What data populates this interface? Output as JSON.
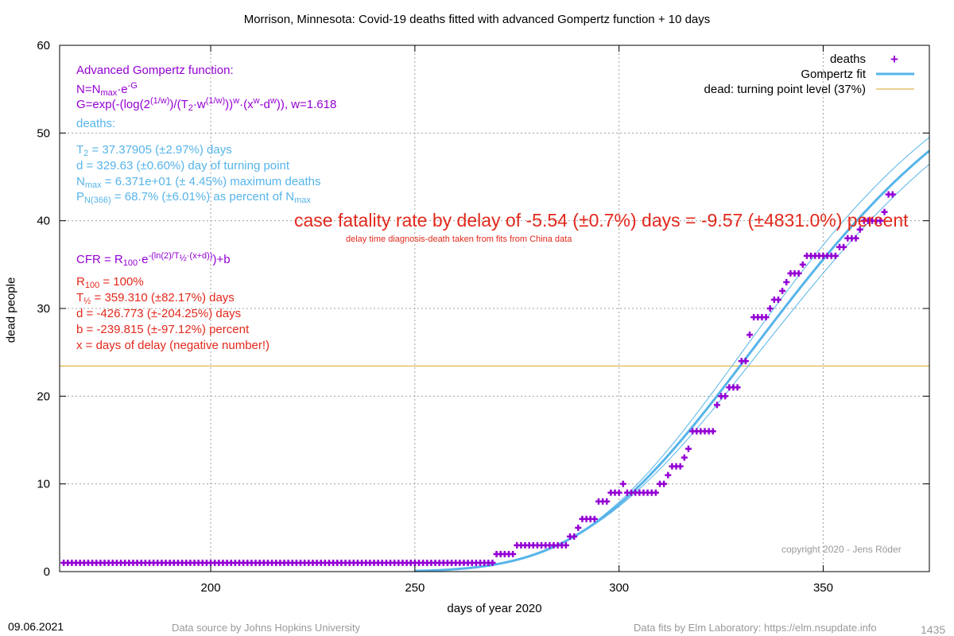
{
  "title": "Morrison,  Minnesota: Covid-19 deaths fitted with advanced Gompertz function + 10 days",
  "footer": {
    "date": "09.06.2021",
    "source": "Data source by Johns Hopkins University",
    "fits": "Data fits by Elm Laboratory: https://elm.nsupdate.info",
    "id": "1435",
    "copyright": "copyright 2020 - Jens Röder"
  },
  "annotations": {
    "gompertz_heading": "Advanced Gompertz function:",
    "gompertz_n": "N=N",
    "gompertz_n_sub": "max",
    "gompertz_n_rest": "·e",
    "gompertz_n_sup": "-G",
    "gompertz_g": " G=exp(-(log(2",
    "gompertz_g_sup1": "(1/w)",
    "gompertz_g_mid": ")/(T",
    "gompertz_g_sub": "2",
    "gompertz_g_mid2": "·w",
    "gompertz_g_sup2": "(1/w)",
    "gompertz_g_mid3": "))",
    "gompertz_g_sup3": "w",
    "gompertz_g_mid4": "·(x",
    "gompertz_g_sup4": "w",
    "gompertz_g_mid5": "-d",
    "gompertz_g_sup5": "w",
    "gompertz_g_end": ")), w=1.618",
    "deaths_heading": "deaths:",
    "t2_label": "T",
    "t2_sub": "2",
    "t2_value": " = 37.37905 (±2.97%) days",
    "d_line": "d = 329.63 (±0.60%) day of turning point",
    "nmax_label": "N",
    "nmax_sub": "max",
    "nmax_value": " = 6.371e+01 (± 4.45%) maximum deaths",
    "p_label": "P",
    "p_sub": "N(366)",
    "p_value": " = 68.7% (±6.01%) as percent of N",
    "p_sub2": "max",
    "cfr_label": "CFR = R",
    "cfr_sub": "100",
    "cfr_mid": "·e",
    "cfr_sup": "-(ln(2)/T",
    "cfr_sup_sub": "½",
    "cfr_sup_end": "·(x+d))",
    "cfr_end": ")+b",
    "r100_label": "R",
    "r100_sub": "100",
    "r100_value": " = 100%",
    "thalf_label": "T",
    "thalf_sub": "½",
    "thalf_value": " = 359.310 (±82.17%) days",
    "d2_line": "d = -426.773 (±-204.25%) days",
    "b_line": "b = -239.815 (±-97.12%) percent",
    "x_line": "x = days of delay (negative number!)",
    "cfr_big": "case fatality rate by delay of -5.54 (±0.7%) days = -9.57 (±4831.0%) percent",
    "cfr_small": "delay time diagnosis-death taken from fits from China data"
  },
  "colors": {
    "deaths": "#9400d3",
    "fit": "#56b4e9",
    "turning": "#daa520",
    "red": "#e2291c",
    "grid": "#a0a0a0"
  },
  "chart_data": {
    "type": "scatter",
    "title": "Morrison,  Minnesota: Covid-19 deaths fitted with advanced Gompertz function + 10 days",
    "xlabel": "days of year 2020",
    "ylabel": "dead people",
    "xlim": [
      163,
      376
    ],
    "ylim": [
      0,
      60
    ],
    "xticks": [
      200,
      250,
      300,
      350
    ],
    "yticks": [
      0,
      10,
      20,
      30,
      40,
      50,
      60
    ],
    "grid": true,
    "legend_position": "top-right",
    "legend": [
      "deaths",
      "Gompertz fit",
      "dead: turning point level (37%)"
    ],
    "turning_point_level": 23.44,
    "gompertz": {
      "T2": 37.37905,
      "d": 329.63,
      "Nmax": 63.71,
      "w": 1.618,
      "x_start": 250,
      "T2_lo": 36.27,
      "T2_hi": 38.49,
      "d_lo": 327.65,
      "d_hi": 331.61
    },
    "series": [
      {
        "name": "deaths",
        "points": [
          [
            164,
            1
          ],
          [
            165,
            1
          ],
          [
            166,
            1
          ],
          [
            167,
            1
          ],
          [
            168,
            1
          ],
          [
            169,
            1
          ],
          [
            170,
            1
          ],
          [
            171,
            1
          ],
          [
            172,
            1
          ],
          [
            173,
            1
          ],
          [
            174,
            1
          ],
          [
            175,
            1
          ],
          [
            176,
            1
          ],
          [
            177,
            1
          ],
          [
            178,
            1
          ],
          [
            179,
            1
          ],
          [
            180,
            1
          ],
          [
            181,
            1
          ],
          [
            182,
            1
          ],
          [
            183,
            1
          ],
          [
            184,
            1
          ],
          [
            185,
            1
          ],
          [
            186,
            1
          ],
          [
            187,
            1
          ],
          [
            188,
            1
          ],
          [
            189,
            1
          ],
          [
            190,
            1
          ],
          [
            191,
            1
          ],
          [
            192,
            1
          ],
          [
            193,
            1
          ],
          [
            194,
            1
          ],
          [
            195,
            1
          ],
          [
            196,
            1
          ],
          [
            197,
            1
          ],
          [
            198,
            1
          ],
          [
            199,
            1
          ],
          [
            200,
            1
          ],
          [
            201,
            1
          ],
          [
            202,
            1
          ],
          [
            203,
            1
          ],
          [
            204,
            1
          ],
          [
            205,
            1
          ],
          [
            206,
            1
          ],
          [
            207,
            1
          ],
          [
            208,
            1
          ],
          [
            209,
            1
          ],
          [
            210,
            1
          ],
          [
            211,
            1
          ],
          [
            212,
            1
          ],
          [
            213,
            1
          ],
          [
            214,
            1
          ],
          [
            215,
            1
          ],
          [
            216,
            1
          ],
          [
            217,
            1
          ],
          [
            218,
            1
          ],
          [
            219,
            1
          ],
          [
            220,
            1
          ],
          [
            221,
            1
          ],
          [
            222,
            1
          ],
          [
            223,
            1
          ],
          [
            224,
            1
          ],
          [
            225,
            1
          ],
          [
            226,
            1
          ],
          [
            227,
            1
          ],
          [
            228,
            1
          ],
          [
            229,
            1
          ],
          [
            230,
            1
          ],
          [
            231,
            1
          ],
          [
            232,
            1
          ],
          [
            233,
            1
          ],
          [
            234,
            1
          ],
          [
            235,
            1
          ],
          [
            236,
            1
          ],
          [
            237,
            1
          ],
          [
            238,
            1
          ],
          [
            239,
            1
          ],
          [
            240,
            1
          ],
          [
            241,
            1
          ],
          [
            242,
            1
          ],
          [
            243,
            1
          ],
          [
            244,
            1
          ],
          [
            245,
            1
          ],
          [
            246,
            1
          ],
          [
            247,
            1
          ],
          [
            248,
            1
          ],
          [
            249,
            1
          ],
          [
            250,
            1
          ],
          [
            251,
            1
          ],
          [
            252,
            1
          ],
          [
            253,
            1
          ],
          [
            254,
            1
          ],
          [
            255,
            1
          ],
          [
            256,
            1
          ],
          [
            257,
            1
          ],
          [
            258,
            1
          ],
          [
            259,
            1
          ],
          [
            260,
            1
          ],
          [
            261,
            1
          ],
          [
            262,
            1
          ],
          [
            263,
            1
          ],
          [
            264,
            1
          ],
          [
            265,
            1
          ],
          [
            266,
            1
          ],
          [
            267,
            1
          ],
          [
            268,
            1
          ],
          [
            269,
            1
          ],
          [
            270,
            2
          ],
          [
            271,
            2
          ],
          [
            272,
            2
          ],
          [
            273,
            2
          ],
          [
            274,
            2
          ],
          [
            275,
            3
          ],
          [
            276,
            3
          ],
          [
            277,
            3
          ],
          [
            278,
            3
          ],
          [
            279,
            3
          ],
          [
            280,
            3
          ],
          [
            281,
            3
          ],
          [
            282,
            3
          ],
          [
            283,
            3
          ],
          [
            284,
            3
          ],
          [
            285,
            3
          ],
          [
            286,
            3
          ],
          [
            287,
            3
          ],
          [
            288,
            4
          ],
          [
            289,
            4
          ],
          [
            290,
            5
          ],
          [
            291,
            6
          ],
          [
            292,
            6
          ],
          [
            293,
            6
          ],
          [
            294,
            6
          ],
          [
            295,
            8
          ],
          [
            296,
            8
          ],
          [
            297,
            8
          ],
          [
            298,
            9
          ],
          [
            299,
            9
          ],
          [
            300,
            9
          ],
          [
            301,
            10
          ],
          [
            302,
            9
          ],
          [
            303,
            9
          ],
          [
            304,
            9
          ],
          [
            305,
            9
          ],
          [
            306,
            9
          ],
          [
            307,
            9
          ],
          [
            308,
            9
          ],
          [
            309,
            9
          ],
          [
            310,
            10
          ],
          [
            311,
            10
          ],
          [
            312,
            11
          ],
          [
            313,
            12
          ],
          [
            314,
            12
          ],
          [
            315,
            12
          ],
          [
            316,
            13
          ],
          [
            317,
            14
          ],
          [
            318,
            16
          ],
          [
            319,
            16
          ],
          [
            320,
            16
          ],
          [
            321,
            16
          ],
          [
            322,
            16
          ],
          [
            323,
            16
          ],
          [
            324,
            19
          ],
          [
            325,
            20
          ],
          [
            326,
            20
          ],
          [
            327,
            21
          ],
          [
            328,
            21
          ],
          [
            329,
            21
          ],
          [
            330,
            24
          ],
          [
            331,
            24
          ],
          [
            332,
            27
          ],
          [
            333,
            29
          ],
          [
            334,
            29
          ],
          [
            335,
            29
          ],
          [
            336,
            29
          ],
          [
            337,
            30
          ],
          [
            338,
            31
          ],
          [
            339,
            31
          ],
          [
            340,
            32
          ],
          [
            341,
            33
          ],
          [
            342,
            34
          ],
          [
            343,
            34
          ],
          [
            344,
            34
          ],
          [
            345,
            35
          ],
          [
            346,
            36
          ],
          [
            347,
            36
          ],
          [
            348,
            36
          ],
          [
            349,
            36
          ],
          [
            350,
            36
          ],
          [
            351,
            36
          ],
          [
            352,
            36
          ],
          [
            353,
            36
          ],
          [
            354,
            37
          ],
          [
            355,
            37
          ],
          [
            356,
            38
          ],
          [
            357,
            38
          ],
          [
            358,
            38
          ],
          [
            359,
            39
          ],
          [
            360,
            40
          ],
          [
            361,
            40
          ],
          [
            362,
            40
          ],
          [
            363,
            40
          ],
          [
            364,
            40
          ],
          [
            365,
            41
          ],
          [
            366,
            43
          ],
          [
            367,
            43
          ]
        ]
      },
      {
        "name": "Gompertz fit"
      }
    ]
  }
}
